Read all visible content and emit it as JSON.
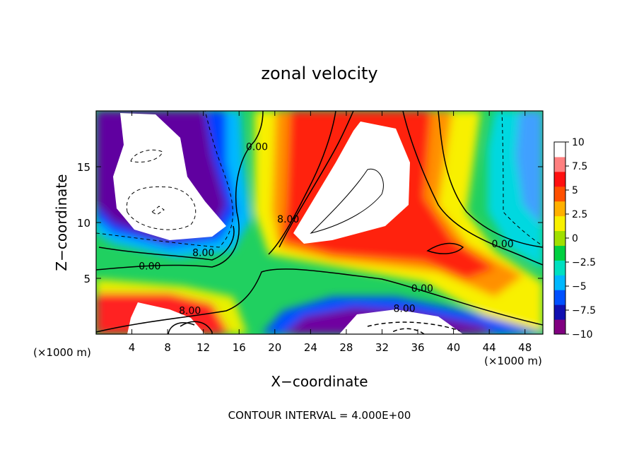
{
  "chart_data": {
    "type": "heatmap",
    "title": "zonal velocity",
    "xlabel": "X−coordinate",
    "ylabel": "Z−coordinate",
    "x_unit_left": "(×1000 m)",
    "x_unit_right": "(×1000 m)",
    "footer": "CONTOUR INTERVAL = 4.000E+00",
    "xlim": [
      0,
      50
    ],
    "ylim": [
      0,
      20
    ],
    "x_ticks": [
      4,
      8,
      12,
      16,
      20,
      24,
      28,
      32,
      36,
      40,
      44,
      48
    ],
    "x_tick_labels": [
      "4",
      "8",
      "12",
      "16",
      "20",
      "24",
      "28",
      "32",
      "36",
      "40",
      "44",
      "48"
    ],
    "y_ticks": [
      5,
      10,
      15
    ],
    "y_tick_labels": [
      "5",
      "10",
      "15"
    ],
    "colorbar": {
      "range": [
        -10,
        10
      ],
      "ticks": [
        10,
        7.5,
        5,
        2.5,
        0,
        -2.5,
        -5,
        -7.5,
        -10
      ],
      "tick_labels": [
        "10",
        "7.5",
        "5",
        "2.5",
        "0",
        "−2.5",
        "−5",
        "−7.5",
        "−10"
      ],
      "colors": [
        "#800080",
        "#1010b0",
        "#0050ff",
        "#00b8ff",
        "#00e0c0",
        "#00d040",
        "#a0e000",
        "#f8f000",
        "#ffb000",
        "#ff5000",
        "#ff1010",
        "#ff8080",
        "#ffffff"
      ]
    },
    "contour_labels": [
      {
        "text": "0.00",
        "x": 18.0,
        "y": 16.5
      },
      {
        "text": "8.00",
        "x": 21.5,
        "y": 10.0
      },
      {
        "text": "8.00",
        "x": 12.0,
        "y": 7.0
      },
      {
        "text": "0.00",
        "x": 6.0,
        "y": 5.8
      },
      {
        "text": "8.00",
        "x": 10.5,
        "y": 1.8
      },
      {
        "text": "0.00",
        "x": 36.5,
        "y": 3.8
      },
      {
        "text": "8.00",
        "x": 34.5,
        "y": 2.0
      },
      {
        "text": "0.00",
        "x": 45.5,
        "y": 7.8
      }
    ]
  }
}
